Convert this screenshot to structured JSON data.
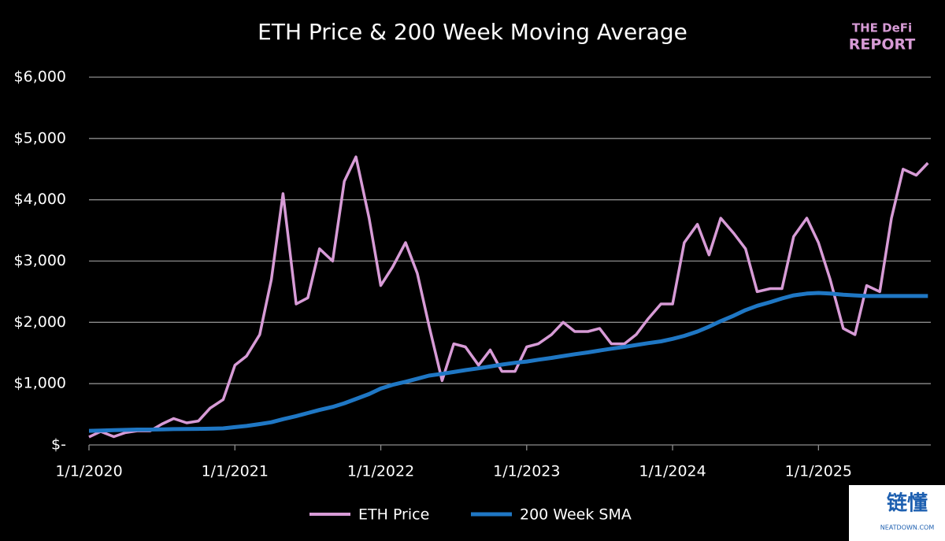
{
  "chart_data": {
    "type": "line",
    "title": "ETH Price & 200 Week Moving Average",
    "logo": [
      "THE DeFi",
      "REPORT"
    ],
    "watermark": [
      "链懂",
      "NEATDOWN.COM"
    ],
    "x": [
      2020,
      2020.08,
      2020.17,
      2020.25,
      2020.33,
      2020.42,
      2020.5,
      2020.58,
      2020.67,
      2020.75,
      2020.83,
      2020.92,
      2021,
      2021.08,
      2021.17,
      2021.25,
      2021.33,
      2021.42,
      2021.5,
      2021.58,
      2021.67,
      2021.75,
      2021.83,
      2021.92,
      2022,
      2022.08,
      2022.17,
      2022.25,
      2022.33,
      2022.42,
      2022.5,
      2022.58,
      2022.67,
      2022.75,
      2022.83,
      2022.92,
      2023,
      2023.08,
      2023.17,
      2023.25,
      2023.33,
      2023.42,
      2023.5,
      2023.58,
      2023.67,
      2023.75,
      2023.83,
      2023.92,
      2024,
      2024.08,
      2024.17,
      2024.25,
      2024.33,
      2024.42,
      2024.5,
      2024.58,
      2024.67,
      2024.75,
      2024.83,
      2024.92,
      2025,
      2025.08,
      2025.17,
      2025.25,
      2025.33,
      2025.42,
      2025.5,
      2025.58,
      2025.67,
      2025.75
    ],
    "series": [
      {
        "name": "ETH Price",
        "color": "#d79bd6",
        "values": [
          130,
          220,
          135,
          200,
          230,
          230,
          340,
          430,
          360,
          390,
          600,
          740,
          1300,
          1450,
          1800,
          2700,
          4100,
          2300,
          2400,
          3200,
          3000,
          4300,
          4700,
          3700,
          2600,
          2900,
          3300,
          2800,
          1950,
          1050,
          1650,
          1600,
          1300,
          1550,
          1200,
          1200,
          1600,
          1650,
          1800,
          2000,
          1850,
          1850,
          1900,
          1650,
          1650,
          1800,
          2050,
          2300,
          2300,
          3300,
          3600,
          3100,
          3700,
          3450,
          3200,
          2500,
          2550,
          2550,
          3400,
          3700,
          3300,
          2700,
          1900,
          1800,
          2600,
          2500,
          3700,
          4500,
          4400,
          4600
        ]
      },
      {
        "name": "200 Week SMA",
        "color": "#1f77c4",
        "values": [
          230,
          235,
          240,
          245,
          250,
          250,
          255,
          258,
          260,
          262,
          265,
          270,
          290,
          310,
          340,
          370,
          420,
          470,
          520,
          570,
          620,
          680,
          750,
          830,
          920,
          980,
          1030,
          1080,
          1130,
          1160,
          1190,
          1220,
          1250,
          1280,
          1310,
          1340,
          1360,
          1390,
          1420,
          1450,
          1480,
          1510,
          1540,
          1570,
          1600,
          1630,
          1660,
          1690,
          1730,
          1780,
          1850,
          1930,
          2020,
          2110,
          2200,
          2270,
          2330,
          2390,
          2440,
          2470,
          2480,
          2470,
          2450,
          2440,
          2430,
          2430,
          2430,
          2430,
          2430,
          2430
        ]
      }
    ],
    "xlim": [
      2020,
      2025.77
    ],
    "xticks": [
      {
        "value": 2020,
        "label": "1/1/2020"
      },
      {
        "value": 2021,
        "label": "1/1/2021"
      },
      {
        "value": 2022,
        "label": "1/1/2022"
      },
      {
        "value": 2023,
        "label": "1/1/2023"
      },
      {
        "value": 2024,
        "label": "1/1/2024"
      },
      {
        "value": 2025,
        "label": "1/1/2025"
      }
    ],
    "ylim": [
      0,
      6000
    ],
    "yticks": [
      {
        "value": 0,
        "label": "$-"
      },
      {
        "value": 1000,
        "label": "$1,000"
      },
      {
        "value": 2000,
        "label": "$2,000"
      },
      {
        "value": 3000,
        "label": "$3,000"
      },
      {
        "value": 4000,
        "label": "$4,000"
      },
      {
        "value": 5000,
        "label": "$5,000"
      },
      {
        "value": 6000,
        "label": "$6,000"
      }
    ],
    "grid": true,
    "legend": "bottom"
  }
}
